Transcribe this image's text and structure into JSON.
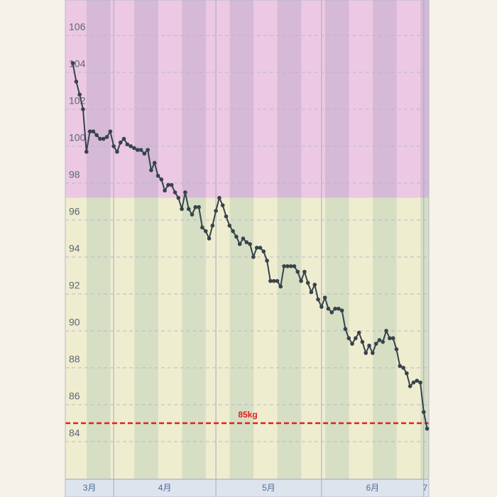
{
  "chart_data": {
    "type": "line",
    "color": "#37434c",
    "x": [
      -12,
      -11,
      -10,
      -9,
      -8,
      -7,
      -6,
      -5,
      -4,
      -3,
      -2,
      -1,
      0,
      1,
      2,
      3,
      4,
      5,
      6,
      7,
      8,
      9,
      10,
      11,
      12,
      13,
      14,
      15,
      16,
      17,
      18,
      19,
      20,
      21,
      22,
      23,
      24,
      25,
      26,
      27,
      28,
      29,
      30,
      31,
      32,
      33,
      34,
      35,
      36,
      37,
      38,
      39,
      40,
      41,
      42,
      43,
      44,
      45,
      46,
      47,
      48,
      49,
      50,
      51,
      52,
      53,
      54,
      55,
      56,
      57,
      58,
      59,
      60,
      61,
      62,
      63,
      64,
      65,
      66,
      67,
      68,
      69,
      70,
      71,
      72,
      73,
      74,
      75,
      76,
      77,
      78,
      79,
      80,
      81,
      82,
      83,
      84,
      85,
      86,
      87,
      88,
      89,
      90,
      91,
      92
    ],
    "values": [
      104.5,
      103.5,
      102.8,
      102.0,
      99.7,
      100.8,
      100.8,
      100.6,
      100.4,
      100.4,
      100.5,
      100.8,
      100.0,
      99.7,
      100.2,
      100.4,
      100.1,
      100.0,
      99.9,
      99.8,
      99.8,
      99.6,
      99.8,
      98.7,
      99.1,
      98.4,
      98.2,
      97.6,
      97.9,
      97.9,
      97.5,
      97.2,
      96.6,
      97.5,
      96.6,
      96.3,
      96.7,
      96.7,
      95.6,
      95.4,
      95.0,
      95.7,
      96.5,
      97.2,
      96.8,
      96.2,
      95.7,
      95.4,
      95.1,
      94.7,
      95.0,
      94.8,
      94.7,
      94.0,
      94.5,
      94.5,
      94.3,
      93.8,
      92.7,
      92.7,
      92.7,
      92.4,
      93.5,
      93.5,
      93.5,
      93.5,
      93.2,
      92.7,
      93.2,
      92.6,
      92.1,
      92.5,
      91.7,
      91.3,
      91.8,
      91.2,
      91.0,
      91.2,
      91.2,
      91.1,
      90.1,
      89.6,
      89.3,
      89.6,
      89.9,
      89.4,
      88.8,
      89.2,
      88.8,
      89.3,
      89.5,
      89.4,
      90.0,
      89.6,
      89.6,
      89.0,
      88.1,
      88.0,
      87.7,
      87.0,
      87.2,
      87.3,
      87.2,
      85.6,
      84.7
    ],
    "xlim": [
      -14.2,
      92.5
    ],
    "xticks": [
      {
        "value": -31,
        "label": "3月"
      },
      {
        "value": 0,
        "label": "4月"
      },
      {
        "value": 30,
        "label": "5月"
      },
      {
        "value": 61,
        "label": "6月"
      },
      {
        "value": 91,
        "label": "7"
      }
    ],
    "ylim": [
      81.96,
      107.92
    ],
    "yticks": [
      84,
      86,
      88,
      90,
      92,
      94,
      96,
      98,
      100,
      102,
      104,
      106
    ],
    "bands": [
      {
        "from": 97.2,
        "to": 107.92,
        "color": "#ecc8e3",
        "stripe": "#d5b9d6"
      },
      {
        "from": 81.96,
        "to": 97.2,
        "color": "#efedcf",
        "stripe": "#d6dfc4"
      }
    ],
    "reference_line": {
      "value": 85,
      "label": "85kg",
      "color": "#e0201c"
    },
    "grid": true
  }
}
